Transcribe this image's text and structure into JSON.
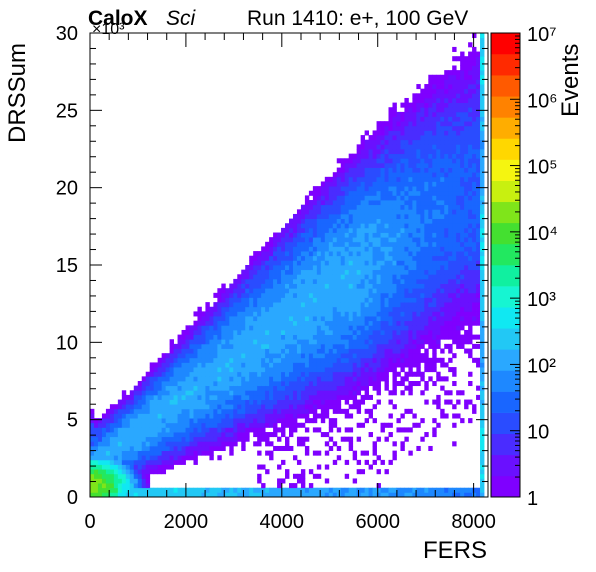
{
  "chart_data": {
    "type": "heatmap",
    "title": "Run 1410: e+, 100 GeV",
    "experiment": "CaloX",
    "experiment_tag": "Sci",
    "xlabel": "FERS",
    "ylabel": "DRSSum",
    "y_multiplier_label": "×10³",
    "zlabel": "Events",
    "xlim": [
      0,
      8300
    ],
    "ylim": [
      0,
      30
    ],
    "zlim": [
      1,
      10000000
    ],
    "z_log_scale": true,
    "x_ticks": [
      "0",
      "2000",
      "4000",
      "6000",
      "8000"
    ],
    "y_ticks": [
      "0",
      "5",
      "10",
      "15",
      "20",
      "25",
      "30"
    ],
    "z_ticks": [
      "1",
      "10",
      "10²",
      "10³",
      "10⁴",
      "10⁵",
      "10⁶",
      "10⁷"
    ],
    "grid": false,
    "colors": {
      "palette": [
        "#7f00ff",
        "#6a10ff",
        "#4a2cff",
        "#2a4cff",
        "#1966ff",
        "#1e88ff",
        "#2aa8ff",
        "#22c8f5",
        "#10e8f2",
        "#16f5d2",
        "#10f0a0",
        "#22e860",
        "#44e030",
        "#7fe51a",
        "#c8f010",
        "#f5f510",
        "#ffd700",
        "#ffad00",
        "#ff8200",
        "#ff5a00",
        "#ff2a00",
        "#ff0000"
      ]
    },
    "features": [
      {
        "name": "main shower band",
        "description": "broad diagonal band rising from (0, 2) to (8000, 20)"
      },
      {
        "name": "saturation column",
        "x": 8150,
        "y_range": [
          0,
          30
        ],
        "z_approx": 200
      },
      {
        "name": "low-energy core",
        "x_range": [
          0,
          1200
        ],
        "y_range": [
          0,
          3
        ],
        "z_approx": 20000
      },
      {
        "name": "zero-DRS row",
        "x_range": [
          0,
          8100
        ],
        "y_range": [
          0,
          0.5
        ],
        "z_approx": 300
      }
    ]
  }
}
